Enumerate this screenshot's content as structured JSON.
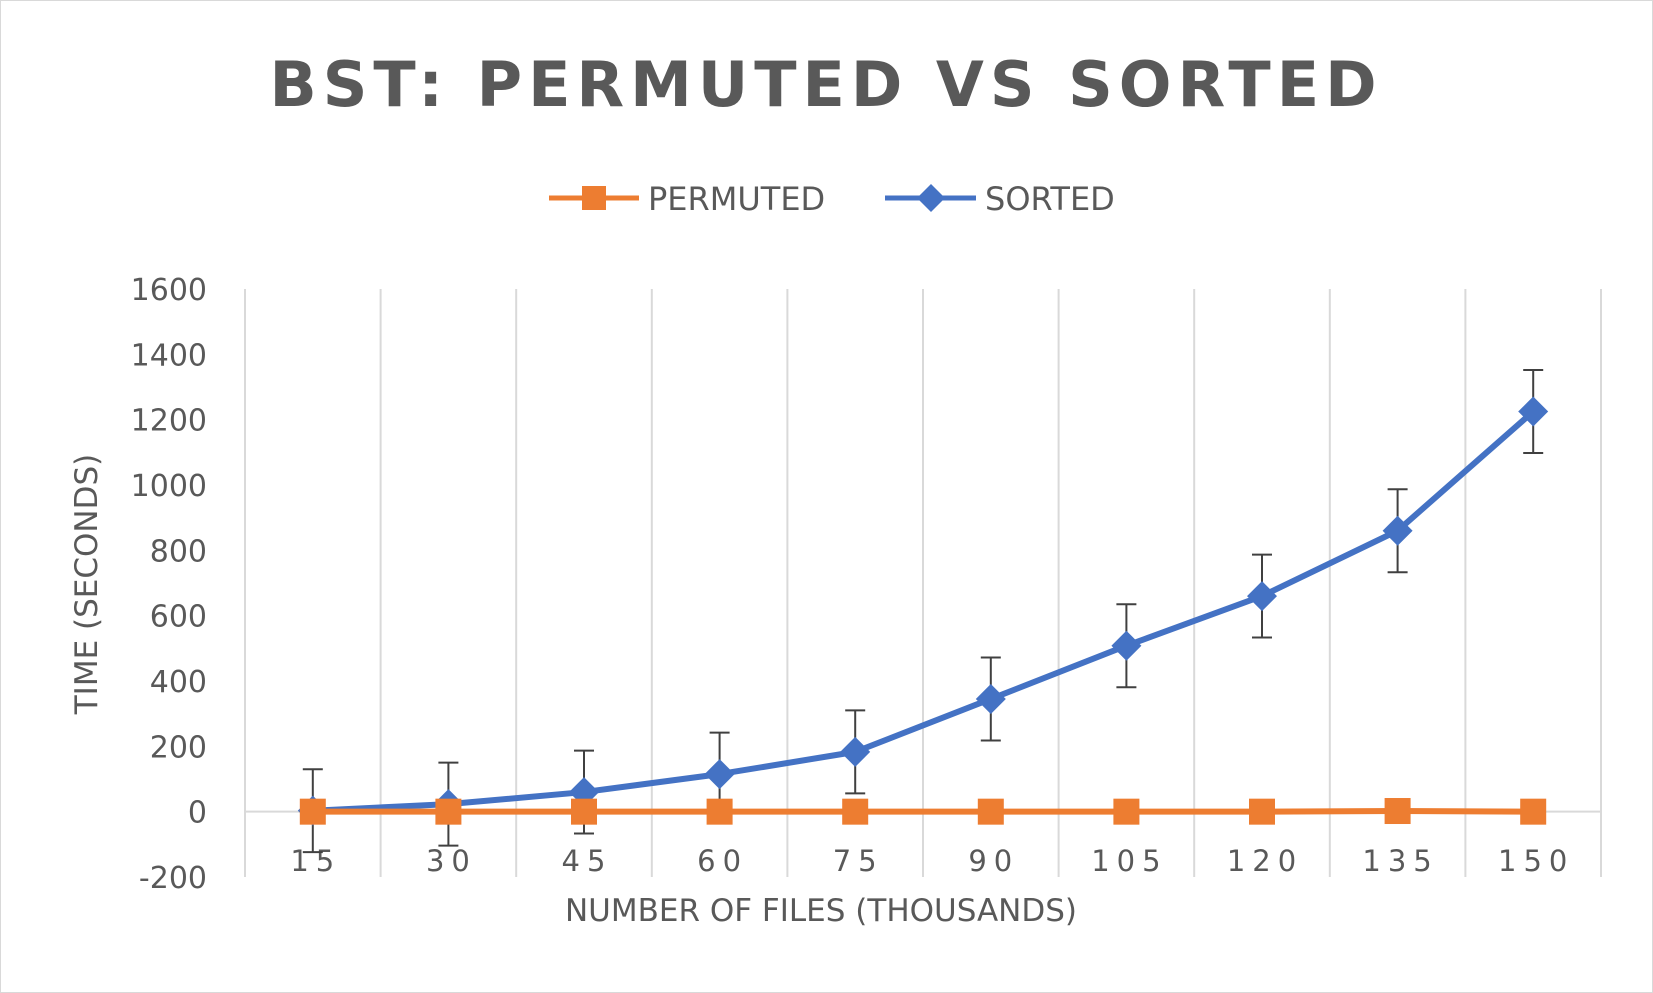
{
  "chart_data": {
    "type": "line",
    "title": "BST: PERMUTED VS SORTED",
    "xlabel": "NUMBER OF FILES (THOUSANDS)",
    "ylabel": "TIME (SECONDS)",
    "categories": [
      "15",
      "30",
      "45",
      "60",
      "75",
      "90",
      "105",
      "120",
      "135",
      "150"
    ],
    "ylim": [
      -200,
      1600
    ],
    "yticks": [
      "-200",
      "0",
      "200",
      "400",
      "600",
      "800",
      "1000",
      "1200",
      "1400",
      "1600"
    ],
    "grid": "vertical",
    "legend_position": "top",
    "series": [
      {
        "name": "PERMUTED",
        "color": "#ED7D31",
        "marker": "square",
        "values": [
          0,
          0,
          0,
          0,
          0,
          0,
          0,
          0,
          2,
          0
        ],
        "error_bars": false
      },
      {
        "name": "SORTED",
        "color": "#4472C4",
        "marker": "diamond",
        "values": [
          3,
          23,
          60,
          115,
          183,
          345,
          508,
          660,
          860,
          1225
        ],
        "error_bars": true,
        "error": 127
      }
    ]
  }
}
